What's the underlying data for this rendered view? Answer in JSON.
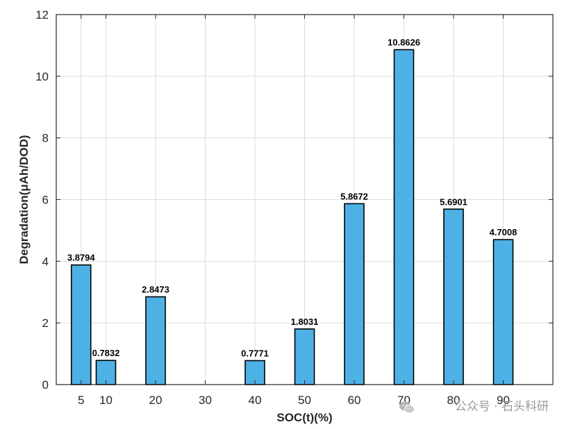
{
  "chart_data": {
    "type": "bar",
    "categories": [
      "5",
      "10",
      "20",
      "30",
      "40",
      "50",
      "60",
      "70",
      "80",
      "90"
    ],
    "x": [
      5,
      10,
      20,
      30,
      40,
      50,
      60,
      70,
      80,
      90
    ],
    "values": [
      3.8794,
      0.7832,
      2.8473,
      null,
      0.7771,
      1.8031,
      5.8672,
      10.8626,
      5.6901,
      4.7008
    ],
    "value_labels": [
      "3.8794",
      "0.7832",
      "2.8473",
      "",
      "0.7771",
      "1.8031",
      "5.8672",
      "10.8626",
      "5.6901",
      "4.7008"
    ],
    "title": "",
    "xlabel": "SOC(t)(%)",
    "ylabel": "Degradation(μAh/DOD)",
    "xlim": [
      0,
      100
    ],
    "ylim": [
      0,
      12
    ],
    "yticks": [
      0,
      2,
      4,
      6,
      8,
      10,
      12
    ],
    "grid": true,
    "bar_color": "#4DB1E6",
    "edge_color": "#000000"
  },
  "watermark": {
    "text": "公众号 · 石头科研",
    "icon": "wechat-icon"
  }
}
